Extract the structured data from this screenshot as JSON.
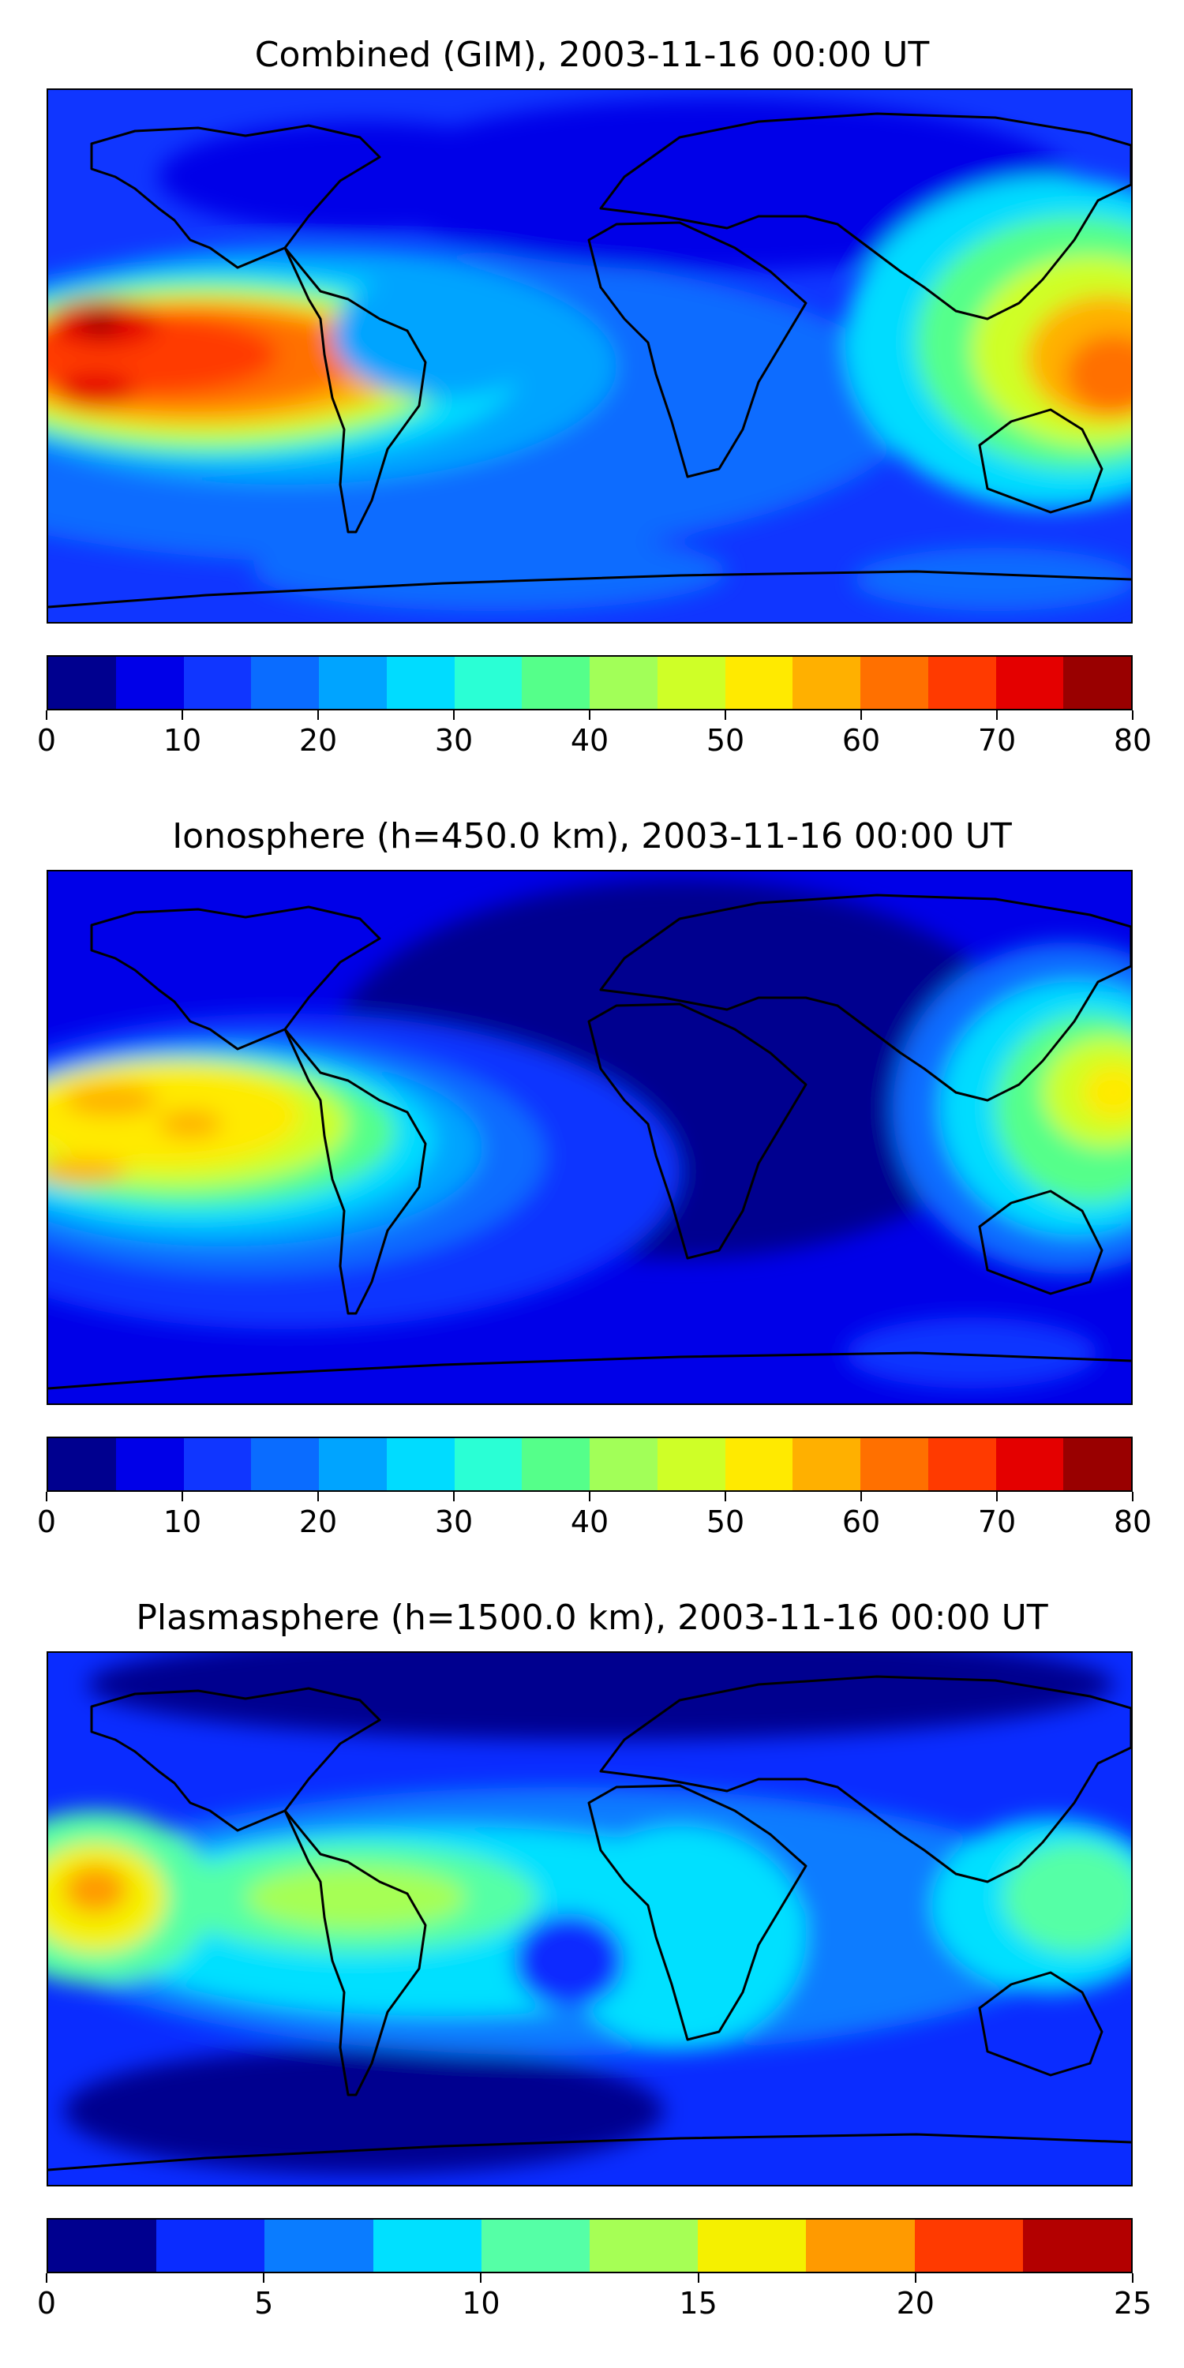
{
  "panels": [
    {
      "title": "Combined (GIM), 2003-11-16 00:00 UT",
      "colorbar": {
        "ticks": [
          "0",
          "10",
          "20",
          "30",
          "40",
          "50",
          "60",
          "70",
          "80"
        ],
        "colors": [
          "#00008f",
          "#0000e8",
          "#1036ff",
          "#0a6cff",
          "#00a4ff",
          "#00dcff",
          "#2affd5",
          "#55ff8a",
          "#a2ff58",
          "#cfff27",
          "#ffea00",
          "#ffb000",
          "#ff7000",
          "#ff3a00",
          "#e40000",
          "#990000"
        ]
      }
    },
    {
      "title": "Ionosphere  (h=450.0 km), 2003-11-16 00:00 UT",
      "colorbar": {
        "ticks": [
          "0",
          "10",
          "20",
          "30",
          "40",
          "50",
          "60",
          "70",
          "80"
        ],
        "colors": [
          "#00008f",
          "#0000e8",
          "#1036ff",
          "#0a6cff",
          "#00a4ff",
          "#00dcff",
          "#2affd5",
          "#55ff8a",
          "#a2ff58",
          "#cfff27",
          "#ffea00",
          "#ffb000",
          "#ff7000",
          "#ff3a00",
          "#e40000",
          "#990000"
        ]
      }
    },
    {
      "title": "Plasmasphere (h=1500.0 km), 2003-11-16 00:00 UT",
      "colorbar": {
        "ticks": [
          "0",
          "5",
          "10",
          "15",
          "20",
          "25"
        ],
        "colors": [
          "#00008f",
          "#0a2cff",
          "#0a7cff",
          "#00e0ff",
          "#55ffa6",
          "#a6ff55",
          "#f5f000",
          "#ff9a00",
          "#ff3a00",
          "#b30000"
        ]
      }
    }
  ]
}
